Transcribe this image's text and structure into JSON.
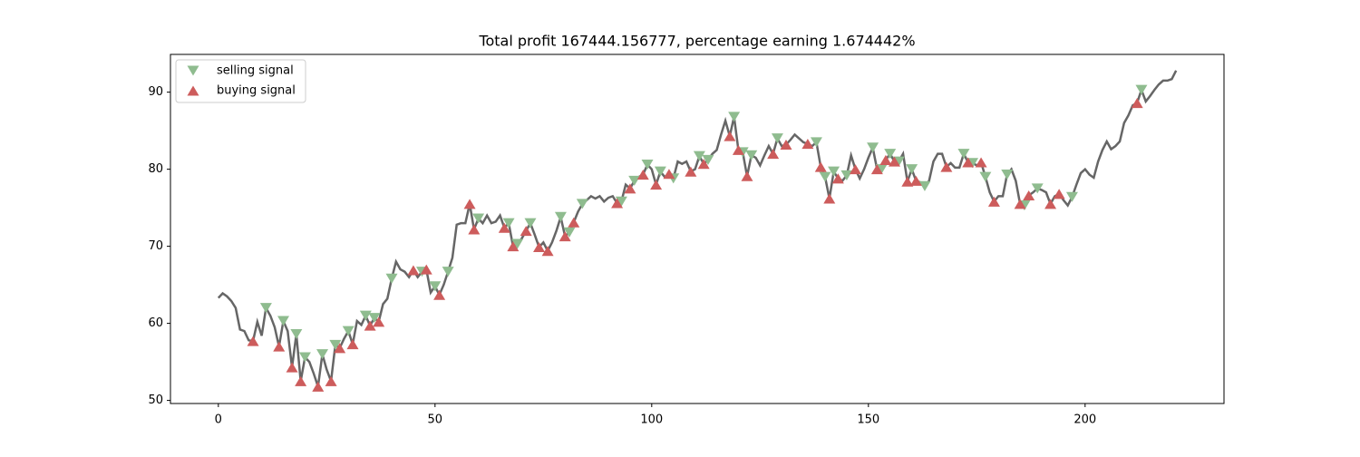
{
  "chart_data": {
    "type": "line",
    "title": "Total profit 167444.156777, percentage earning 1.674442%",
    "color": "#666666",
    "values": [
      63.3,
      63.9,
      63.5,
      62.9,
      62.0,
      59.2,
      59.0,
      57.8,
      57.7,
      60.2,
      58.4,
      62.0,
      61.0,
      59.5,
      57.0,
      60.3,
      59.0,
      54.3,
      58.6,
      52.5,
      55.6,
      55.0,
      53.5,
      51.8,
      56.0,
      54.0,
      52.5,
      57.2,
      56.8,
      58.0,
      59.0,
      57.3,
      60.3,
      59.8,
      61.0,
      59.7,
      60.7,
      60.2,
      62.5,
      63.2,
      65.8,
      68.0,
      67.0,
      66.7,
      66.0,
      66.9,
      66.0,
      66.7,
      67.0,
      64.0,
      64.8,
      63.7,
      65.0,
      66.7,
      68.5,
      72.8,
      73.0,
      73.0,
      75.5,
      72.2,
      73.6,
      73.0,
      74.0,
      73.0,
      73.2,
      74.0,
      72.4,
      73.0,
      70.0,
      70.3,
      71.0,
      72.0,
      73.0,
      71.5,
      69.9,
      70.5,
      69.4,
      70.5,
      72.0,
      73.8,
      71.3,
      71.8,
      73.1,
      74.5,
      75.5,
      76.0,
      76.5,
      76.2,
      76.5,
      75.8,
      76.3,
      76.5,
      75.6,
      75.8,
      78.0,
      77.5,
      78.5,
      79.0,
      79.3,
      80.6,
      80.0,
      78.0,
      79.7,
      79.0,
      79.4,
      78.8,
      81.0,
      80.7,
      81.0,
      79.7,
      80.0,
      81.7,
      80.7,
      81.2,
      82.0,
      82.5,
      84.5,
      86.3,
      84.3,
      86.8,
      82.5,
      82.2,
      79.1,
      81.8,
      81.5,
      80.5,
      81.8,
      83.0,
      82.0,
      84.0,
      83.0,
      83.2,
      83.8,
      84.5,
      84.0,
      83.5,
      83.3,
      83.0,
      83.5,
      80.3,
      79.0,
      76.2,
      79.7,
      78.8,
      78.5,
      79.2,
      81.8,
      80.0,
      78.8,
      80.0,
      81.5,
      82.8,
      80.0,
      80.0,
      81.2,
      82.0,
      81.0,
      81.0,
      82.0,
      78.4,
      80.0,
      78.5,
      78.3,
      77.8,
      78.5,
      81.0,
      82.0,
      82.0,
      80.3,
      80.8,
      80.2,
      80.2,
      82.0,
      80.9,
      80.8,
      80.5,
      80.9,
      79.0,
      77.0,
      75.8,
      76.5,
      76.5,
      79.3,
      80.0,
      78.5,
      75.5,
      75.3,
      76.6,
      77.0,
      77.5,
      77.3,
      77.0,
      75.5,
      76.5,
      76.8,
      76.0,
      75.3,
      76.4,
      78.0,
      79.5,
      80.0,
      79.3,
      78.9,
      81.0,
      82.5,
      83.6,
      82.6,
      83.0,
      83.6,
      86.0,
      87.0,
      88.3,
      88.6,
      90.3,
      88.8,
      89.5,
      90.3,
      91.0,
      91.5,
      91.5,
      91.7,
      92.8
    ],
    "signals": [
      {
        "name": "selling signal",
        "color": "#8fbc8f",
        "marker": "v",
        "indices": [
          11,
          15,
          18,
          20,
          24,
          27,
          30,
          34,
          36,
          40,
          47,
          50,
          53,
          60,
          67,
          69,
          72,
          79,
          81,
          84,
          93,
          96,
          99,
          102,
          105,
          111,
          113,
          119,
          121,
          123,
          129,
          138,
          140,
          142,
          145,
          151,
          153,
          155,
          157,
          160,
          163,
          172,
          174,
          177,
          182,
          186,
          189,
          197,
          213
        ]
      },
      {
        "name": "buying signal",
        "color": "#cd5c5c",
        "marker": "^",
        "indices": [
          8,
          14,
          17,
          19,
          23,
          26,
          28,
          31,
          35,
          37,
          45,
          48,
          51,
          58,
          59,
          66,
          68,
          71,
          74,
          76,
          80,
          82,
          92,
          95,
          98,
          101,
          104,
          109,
          112,
          118,
          120,
          122,
          128,
          131,
          136,
          139,
          141,
          143,
          147,
          152,
          154,
          156,
          159,
          161,
          168,
          173,
          176,
          179,
          185,
          187,
          192,
          194,
          212
        ]
      }
    ],
    "xlim": [
      -11.05,
      232.05
    ],
    "xticks": [
      0,
      50,
      100,
      150,
      200
    ],
    "ylim": [
      49.6,
      94.9
    ],
    "yticks": [
      50,
      60,
      70,
      80,
      90
    ],
    "legend": "upper left"
  }
}
